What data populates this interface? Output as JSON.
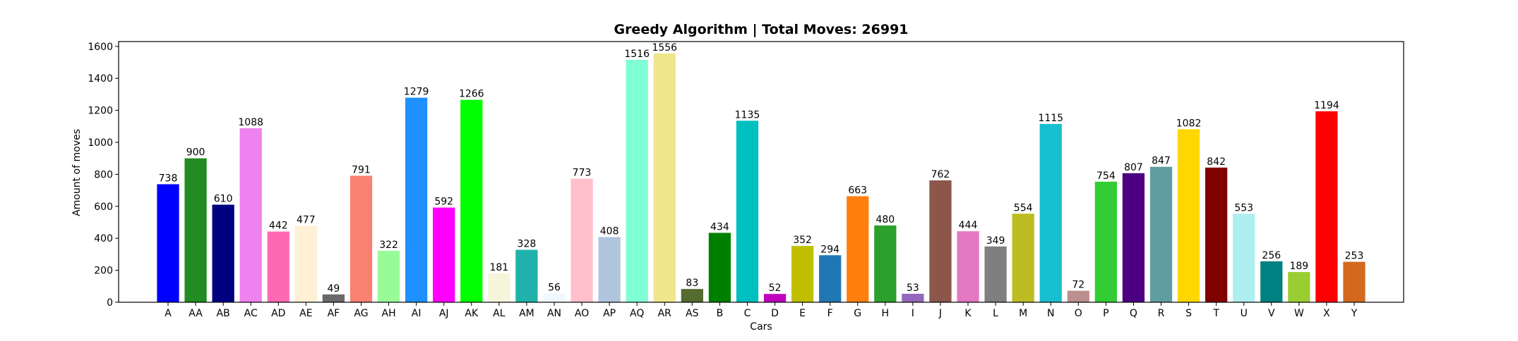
{
  "chart_data": {
    "type": "bar",
    "title": "Greedy Algorithm | Total Moves: 26991",
    "xlabel": "Cars",
    "ylabel": "Amount of moves",
    "ylim": [
      0,
      1630
    ],
    "yticks": [
      0,
      200,
      400,
      600,
      800,
      1000,
      1200,
      1400,
      1600
    ],
    "grid": false,
    "legend": "none",
    "categories": [
      "A",
      "AA",
      "AB",
      "AC",
      "AD",
      "AE",
      "AF",
      "AG",
      "AH",
      "AI",
      "AJ",
      "AK",
      "AL",
      "AM",
      "AN",
      "AO",
      "AP",
      "AQ",
      "AR",
      "AS",
      "B",
      "C",
      "D",
      "E",
      "F",
      "G",
      "H",
      "I",
      "J",
      "K",
      "L",
      "M",
      "N",
      "O",
      "P",
      "Q",
      "R",
      "S",
      "T",
      "U",
      "V",
      "W",
      "X",
      "Y"
    ],
    "values": [
      738,
      900,
      610,
      1088,
      442,
      477,
      49,
      791,
      322,
      1279,
      592,
      1266,
      181,
      328,
      56,
      773,
      408,
      1516,
      1556,
      83,
      434,
      1135,
      52,
      352,
      294,
      663,
      480,
      53,
      762,
      444,
      349,
      554,
      1115,
      72,
      754,
      807,
      847,
      1082,
      842,
      553,
      256,
      189,
      1194,
      253
    ],
    "colors": [
      "#0000ff",
      "#228b22",
      "#000080",
      "#ee82ee",
      "#ff69b4",
      "#ffefd5",
      "#696969",
      "#fa8072",
      "#98fb98",
      "#1e90ff",
      "#ff00ff",
      "#00ff00",
      "#f5f5dc",
      "#20b2aa",
      "#f0f8ff",
      "#ffc0cb",
      "#b0c4de",
      "#7fffd4",
      "#f0e68c",
      "#556b2f",
      "#008000",
      "#00bfbf",
      "#bf00bf",
      "#bfbf00",
      "#1f77b4",
      "#ff7f0e",
      "#2ca02c",
      "#9467bd",
      "#8c564b",
      "#e377c2",
      "#7f7f7f",
      "#bcbd22",
      "#17becf",
      "#bc8f8f",
      "#32cd32",
      "#4b0082",
      "#5f9ea0",
      "#ffd700",
      "#800000",
      "#afeeee",
      "#008080",
      "#9acd32",
      "#ff0000",
      "#d2691e"
    ]
  }
}
